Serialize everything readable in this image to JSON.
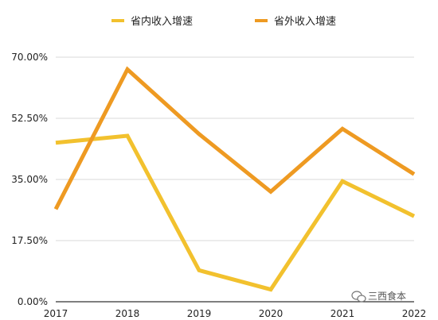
{
  "chart_data": {
    "type": "line",
    "title": "",
    "xlabel": "",
    "ylabel": "",
    "x": [
      "2017",
      "2018",
      "2019",
      "2020",
      "2021",
      "2022"
    ],
    "ylim": [
      0,
      70
    ],
    "y_ticks": [
      0,
      17.5,
      35,
      52.5,
      70
    ],
    "y_tick_labels": [
      "0.00%",
      "17.50%",
      "35.00%",
      "52.50%",
      "70.00%"
    ],
    "grid": true,
    "legend_position": "top-center",
    "series": [
      {
        "name": "省内收入增速",
        "color": "#F2C12E",
        "values": [
          45.5,
          47.5,
          9.0,
          3.5,
          34.5,
          24.5
        ]
      },
      {
        "name": "省外收入增速",
        "color": "#EE9A22",
        "values": [
          26.5,
          66.5,
          48.0,
          31.5,
          49.5,
          36.5
        ]
      }
    ]
  },
  "watermark": {
    "text": "三西食本"
  }
}
